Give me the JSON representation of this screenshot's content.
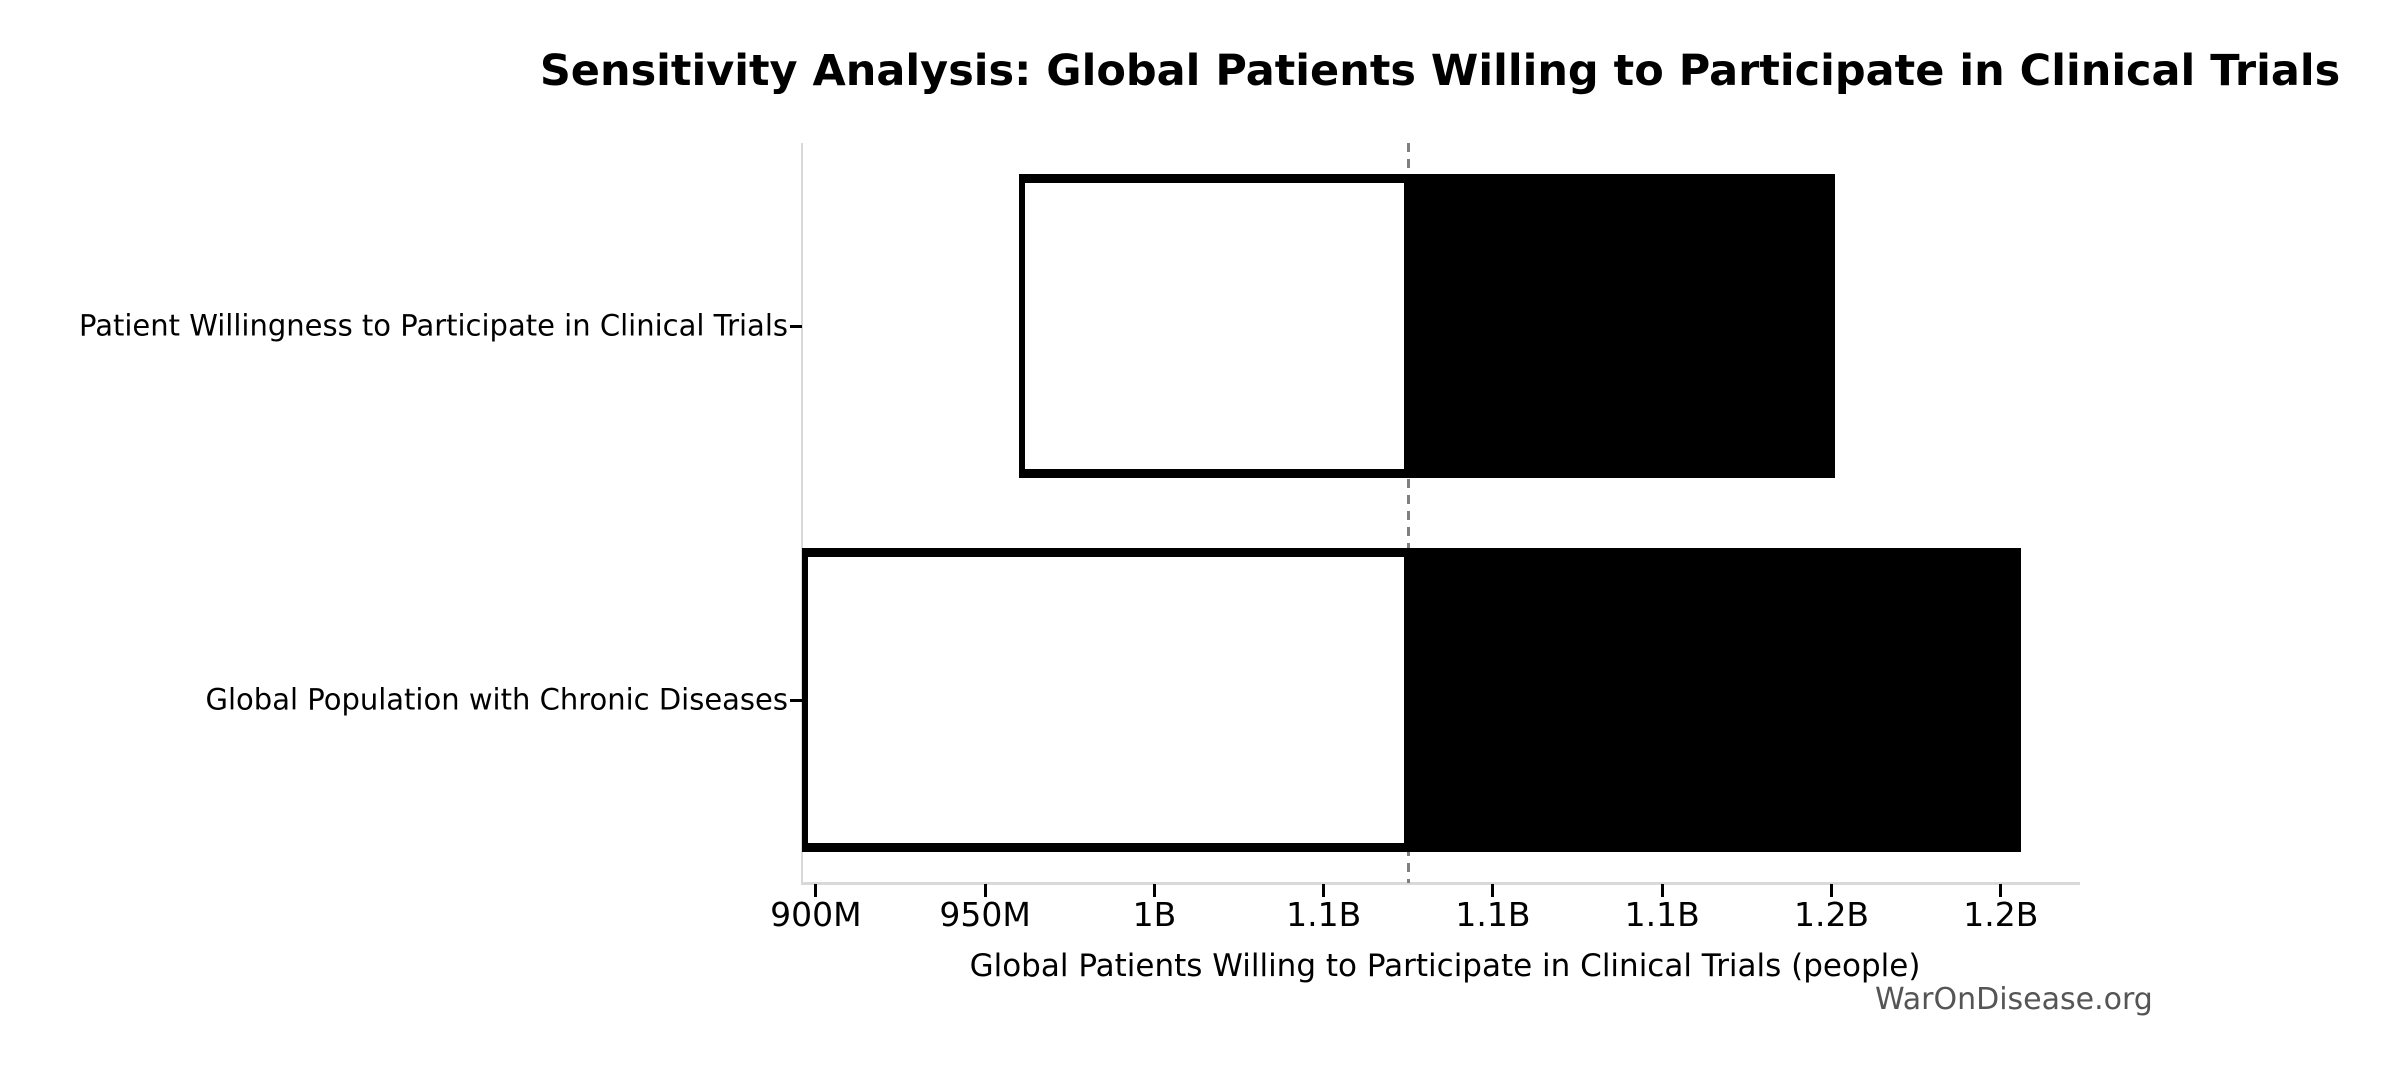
{
  "chart_data": {
    "type": "bar",
    "subtype": "tornado-sensitivity",
    "title": "Sensitivity Analysis: Global Patients Willing to Participate in Clinical Trials",
    "xlabel": "Global Patients Willing to Participate in Clinical Trials (people)",
    "ylabel": "",
    "unit": "people",
    "grid": false,
    "legend": "none",
    "xlim_millions": [
      895.9,
      1273.1
    ],
    "baseline_value_millions": 1075,
    "x_ticks": [
      {
        "value_millions": 900,
        "label": "900M"
      },
      {
        "value_millions": 950,
        "label": "950M"
      },
      {
        "value_millions": 1000,
        "label": "1B"
      },
      {
        "value_millions": 1050,
        "label": "1.1B"
      },
      {
        "value_millions": 1100,
        "label": "1.1B"
      },
      {
        "value_millions": 1150,
        "label": "1.1B"
      },
      {
        "value_millions": 1200,
        "label": "1.2B"
      },
      {
        "value_millions": 1250,
        "label": "1.2B"
      }
    ],
    "categories": [
      "Patient Willingness to Participate in Clinical Trials",
      "Global Population with Chronic Diseases"
    ],
    "series": [
      {
        "name": "Patient Willingness to Participate in Clinical Trials",
        "low_millions": 960,
        "high_millions": 1201
      },
      {
        "name": "Global Population with Chronic Diseases",
        "low_millions": 896,
        "high_millions": 1256
      }
    ],
    "colors": {
      "low_segment_fill": "#ffffff",
      "high_segment_fill": "#000000",
      "bar_edge": "#000000",
      "baseline": "#7f7f7f",
      "spine": "#d9d9d9",
      "tick_mark": "#000000",
      "text": "#000000",
      "watermark_text": "#555555"
    }
  },
  "watermark": "WarOnDisease.org"
}
